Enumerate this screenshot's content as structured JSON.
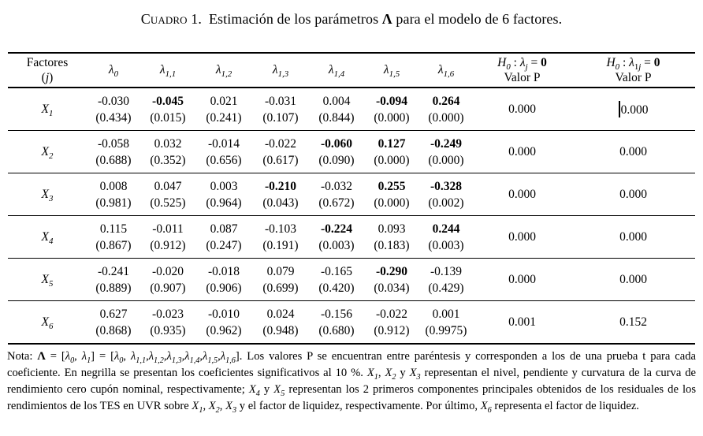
{
  "title": {
    "caption_label": "Cuadro 1.",
    "text_before_lambda": "Estimación de los parámetros ",
    "lambda": "Λ",
    "text_after_lambda": " para el modelo de 6 factores."
  },
  "table": {
    "header": {
      "factores_line1": "Factores",
      "factores_line2": [
        {
          "t": "("
        },
        {
          "t": "j",
          "i": 1
        },
        {
          "t": ")"
        }
      ],
      "lambda0": [
        {
          "t": "λ",
          "i": 1,
          "sub": "0"
        }
      ],
      "lambda11": [
        {
          "t": "λ",
          "i": 1,
          "sub": "1,1"
        }
      ],
      "lambda12": [
        {
          "t": "λ",
          "i": 1,
          "sub": "1,2"
        }
      ],
      "lambda13": [
        {
          "t": "λ",
          "i": 1,
          "sub": "1,3"
        }
      ],
      "lambda14": [
        {
          "t": "λ",
          "i": 1,
          "sub": "1,4"
        }
      ],
      "lambda15": [
        {
          "t": "λ",
          "i": 1,
          "sub": "1,5"
        }
      ],
      "lambda16": [
        {
          "t": "λ",
          "i": 1,
          "sub": "1,6"
        }
      ],
      "h0_j_line1": [
        {
          "t": "H",
          "i": 1,
          "sub": "0"
        },
        {
          "t": " : "
        },
        {
          "t": "λ",
          "i": 1
        },
        {
          "t": "",
          "sub": "j",
          "subi": 1
        },
        {
          "t": " = "
        },
        {
          "t": "0",
          "b": 1
        }
      ],
      "h0_1j_line1": [
        {
          "t": "H",
          "i": 1,
          "sub": "0"
        },
        {
          "t": " : "
        },
        {
          "t": "λ",
          "i": 1
        },
        {
          "t": "",
          "sub": "1"
        },
        {
          "t": "",
          "sub": "j",
          "subi": 1
        },
        {
          "t": " = "
        },
        {
          "t": "0",
          "b": 1
        }
      ],
      "valor_p": "Valor P"
    },
    "rows": [
      {
        "factor_base": "X",
        "factor_sub": "1",
        "cells": [
          {
            "v": "-0.030",
            "p": "(0.434)",
            "bold": false
          },
          {
            "v": "-0.045",
            "p": "(0.015)",
            "bold": true
          },
          {
            "v": "0.021",
            "p": "(0.241)",
            "bold": false
          },
          {
            "v": "-0.031",
            "p": "(0.107)",
            "bold": false
          },
          {
            "v": "0.004",
            "p": "(0.844)",
            "bold": false
          },
          {
            "v": "-0.094",
            "p": "(0.000)",
            "bold": true
          },
          {
            "v": "0.264",
            "p": "(0.000)",
            "bold": true
          }
        ],
        "valor_p_j": "0.000",
        "valor_p_1j": "0.000",
        "caret": true
      },
      {
        "factor_base": "X",
        "factor_sub": "2",
        "cells": [
          {
            "v": "-0.058",
            "p": "(0.688)",
            "bold": false
          },
          {
            "v": "0.032",
            "p": "(0.352)",
            "bold": false
          },
          {
            "v": "-0.014",
            "p": "(0.656)",
            "bold": false
          },
          {
            "v": "-0.022",
            "p": "(0.617)",
            "bold": false
          },
          {
            "v": "-0.060",
            "p": "(0.090)",
            "bold": true
          },
          {
            "v": "0.127",
            "p": "(0.000)",
            "bold": true
          },
          {
            "v": "-0.249",
            "p": "(0.000)",
            "bold": true
          }
        ],
        "valor_p_j": "0.000",
        "valor_p_1j": "0.000",
        "caret": false
      },
      {
        "factor_base": "X",
        "factor_sub": "3",
        "cells": [
          {
            "v": "0.008",
            "p": "(0.981)",
            "bold": false
          },
          {
            "v": "0.047",
            "p": "(0.525)",
            "bold": false
          },
          {
            "v": "0.003",
            "p": "(0.964)",
            "bold": false
          },
          {
            "v": "-0.210",
            "p": "(0.043)",
            "bold": true
          },
          {
            "v": "-0.032",
            "p": "(0.672)",
            "bold": false
          },
          {
            "v": "0.255",
            "p": "(0.000)",
            "bold": true
          },
          {
            "v": "-0.328",
            "p": "(0.002)",
            "bold": true
          }
        ],
        "valor_p_j": "0.000",
        "valor_p_1j": "0.000",
        "caret": false
      },
      {
        "factor_base": "X",
        "factor_sub": "4",
        "cells": [
          {
            "v": "0.115",
            "p": "(0.867)",
            "bold": false
          },
          {
            "v": "-0.011",
            "p": "(0.912)",
            "bold": false
          },
          {
            "v": "0.087",
            "p": "(0.247)",
            "bold": false
          },
          {
            "v": "-0.103",
            "p": "(0.191)",
            "bold": false
          },
          {
            "v": "-0.224",
            "p": "(0.003)",
            "bold": true
          },
          {
            "v": "0.093",
            "p": "(0.183)",
            "bold": false
          },
          {
            "v": "0.244",
            "p": "(0.003)",
            "bold": true
          }
        ],
        "valor_p_j": "0.000",
        "valor_p_1j": "0.000",
        "caret": false
      },
      {
        "factor_base": "X",
        "factor_sub": "5",
        "cells": [
          {
            "v": "-0.241",
            "p": "(0.889)",
            "bold": false
          },
          {
            "v": "-0.020",
            "p": "(0.907)",
            "bold": false
          },
          {
            "v": "-0.018",
            "p": "(0.906)",
            "bold": false
          },
          {
            "v": "0.079",
            "p": "(0.699)",
            "bold": false
          },
          {
            "v": "-0.165",
            "p": "(0.420)",
            "bold": false
          },
          {
            "v": "-0.290",
            "p": "(0.034)",
            "bold": true
          },
          {
            "v": "-0.139",
            "p": "(0.429)",
            "bold": false
          }
        ],
        "valor_p_j": "0.000",
        "valor_p_1j": "0.000",
        "caret": false
      },
      {
        "factor_base": "X",
        "factor_sub": "6",
        "cells": [
          {
            "v": "0.627",
            "p": "(0.868)",
            "bold": false
          },
          {
            "v": "-0.023",
            "p": "(0.935)",
            "bold": false
          },
          {
            "v": "-0.010",
            "p": "(0.962)",
            "bold": false
          },
          {
            "v": "0.024",
            "p": "(0.948)",
            "bold": false
          },
          {
            "v": "-0.156",
            "p": "(0.680)",
            "bold": false
          },
          {
            "v": "-0.022",
            "p": "(0.912)",
            "bold": false
          },
          {
            "v": "0.001",
            "p": "(0.9975)",
            "bold": false
          }
        ],
        "valor_p_j": "0.001",
        "valor_p_1j": "0.152",
        "caret": false
      }
    ]
  },
  "footnote": {
    "segments": [
      {
        "t": "Nota: "
      },
      {
        "t": "Λ",
        "b": 1
      },
      {
        "t": " = ["
      },
      {
        "t": "λ",
        "i": 1,
        "sub": "0"
      },
      {
        "t": ", "
      },
      {
        "t": "λ",
        "i": 1,
        "sub": "1"
      },
      {
        "t": "] = ["
      },
      {
        "t": "λ",
        "i": 1,
        "sub": "0"
      },
      {
        "t": ", "
      },
      {
        "t": "λ",
        "i": 1,
        "sub": "1,1"
      },
      {
        "t": ","
      },
      {
        "t": "λ",
        "i": 1,
        "sub": "1,2"
      },
      {
        "t": ","
      },
      {
        "t": "λ",
        "i": 1,
        "sub": "1,3"
      },
      {
        "t": ","
      },
      {
        "t": "λ",
        "i": 1,
        "sub": "1,4"
      },
      {
        "t": ","
      },
      {
        "t": "λ",
        "i": 1,
        "sub": "1,5"
      },
      {
        "t": ","
      },
      {
        "t": "λ",
        "i": 1,
        "sub": "1,6"
      },
      {
        "t": "]. Los valores P se encuentran entre paréntesis y corresponden a los de una prueba t para cada coeficiente. En negrilla se presentan los coeficientes significativos al 10 %. "
      },
      {
        "t": "X",
        "i": 1,
        "sub": "1"
      },
      {
        "t": ", "
      },
      {
        "t": "X",
        "i": 1,
        "sub": "2"
      },
      {
        "t": " y "
      },
      {
        "t": "X",
        "i": 1,
        "sub": "3"
      },
      {
        "t": " representan el nivel, pendiente y curvatura de la curva de rendimiento cero cupón nominal, respectivamente; "
      },
      {
        "t": "X",
        "i": 1,
        "sub": "4"
      },
      {
        "t": " y "
      },
      {
        "t": "X",
        "i": 1,
        "sub": "5"
      },
      {
        "t": " representan los 2 primeros componentes principales obtenidos de los residuales de los rendimientos de los TES en UVR sobre "
      },
      {
        "t": "X",
        "i": 1,
        "sub": "1"
      },
      {
        "t": ", "
      },
      {
        "t": "X",
        "i": 1,
        "sub": "2"
      },
      {
        "t": ", "
      },
      {
        "t": "X",
        "i": 1,
        "sub": "3"
      },
      {
        "t": " y el factor de liquidez, respectivamente. Por último, "
      },
      {
        "t": "X",
        "i": 1,
        "sub": "6"
      },
      {
        "t": " representa el factor de liquidez."
      }
    ]
  }
}
